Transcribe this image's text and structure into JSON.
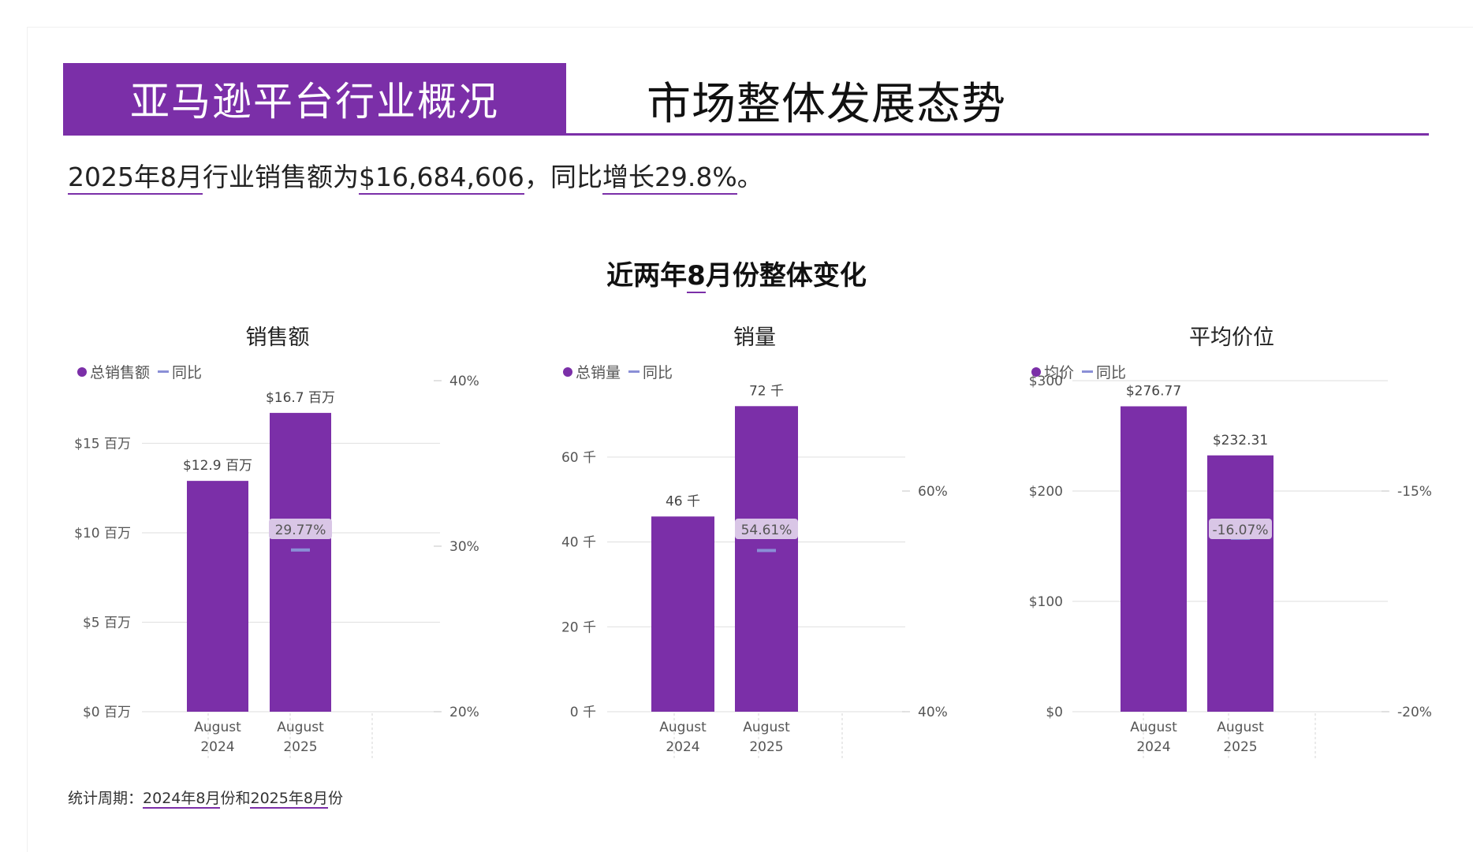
{
  "header": {
    "banner": "亚马逊平台行业概况",
    "title": "市场整体发展态势"
  },
  "summary": {
    "p1": "2025年8月",
    "p2": "行业销售额为",
    "p3": "$16,684,606",
    "p4": "，同比",
    "p5": "增长29.8%",
    "p6": "。"
  },
  "section": {
    "p1": "近两年",
    "p2": "8",
    "p3": "月份整体变化"
  },
  "colors": {
    "bar": "#7B2FA8",
    "yoy": "#8A8FD6",
    "grid": "#e3e3e3",
    "label_bg": "#d9c6e6"
  },
  "footer": {
    "prefix": "统计周期：",
    "d1": "2024年8月",
    "mid": "份和",
    "d2": "2025年8月",
    "suffix": "份"
  },
  "chart_data": [
    {
      "type": "bar",
      "title": "销售额",
      "legend_bar": "总销售额",
      "legend_line": "同比",
      "categories": [
        "August\n2024",
        "August\n2025"
      ],
      "values": [
        12.9,
        16.7
      ],
      "value_labels": [
        "$12.9 百万",
        "$16.7 百万"
      ],
      "ylim": [
        0,
        18.5
      ],
      "yticks": [
        0,
        5,
        10,
        15
      ],
      "ytick_labels": [
        "$0 百万",
        "$5 百万",
        "$10 百万",
        "$15 百万"
      ],
      "y2lim": [
        20,
        40
      ],
      "y2ticks": [
        20,
        30,
        40
      ],
      "y2tick_labels": [
        "20%",
        "30%",
        "40%"
      ],
      "yoy": [
        null,
        29.77
      ],
      "yoy_label": "29.77%"
    },
    {
      "type": "bar",
      "title": "销量",
      "legend_bar": "总销量",
      "legend_line": "同比",
      "categories": [
        "August\n2024",
        "August\n2025"
      ],
      "values": [
        46,
        72
      ],
      "value_labels": [
        "46 千",
        "72 千"
      ],
      "ylim": [
        0,
        78
      ],
      "yticks": [
        0,
        20,
        40,
        60
      ],
      "ytick_labels": [
        "0 千",
        "20 千",
        "40 千",
        "60 千"
      ],
      "y2lim": [
        40,
        70
      ],
      "y2ticks": [
        40,
        60
      ],
      "y2tick_labels": [
        "40%",
        "60%"
      ],
      "yoy": [
        null,
        54.61
      ],
      "yoy_label": "54.61%"
    },
    {
      "type": "bar",
      "title": "平均价位",
      "legend_bar": "均价",
      "legend_line": "同比",
      "categories": [
        "August\n2024",
        "August\n2025"
      ],
      "values": [
        276.77,
        232.31
      ],
      "value_labels": [
        "$276.77",
        "$232.31"
      ],
      "ylim": [
        0,
        300
      ],
      "yticks": [
        0,
        100,
        200,
        300
      ],
      "ytick_labels": [
        "$0",
        "$100",
        "$200",
        "$300"
      ],
      "y2lim": [
        -20,
        -12.5
      ],
      "y2ticks": [
        -20,
        -15
      ],
      "y2tick_labels": [
        "-20%",
        "-15%"
      ],
      "yoy": [
        null,
        -16.07
      ],
      "yoy_label": "-16.07%"
    }
  ]
}
